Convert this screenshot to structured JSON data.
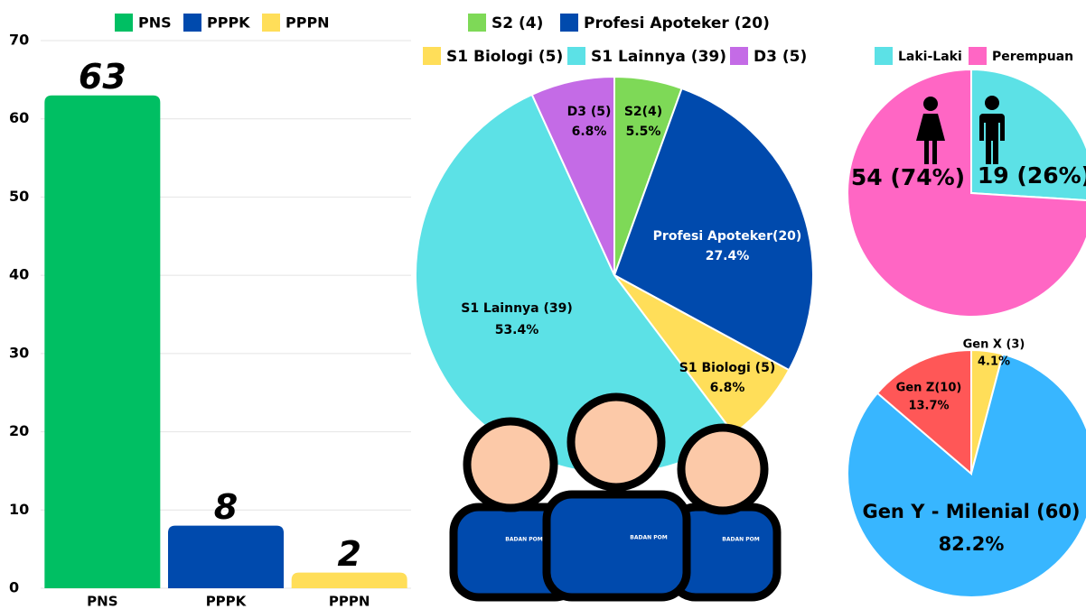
{
  "chart_data": [
    {
      "type": "bar",
      "categories": [
        "PNS",
        "PPPK",
        "PPPN"
      ],
      "values": [
        63,
        8,
        2
      ],
      "colors": [
        "#00bf63",
        "#004aad",
        "#ffde59"
      ],
      "ylim": [
        0,
        70
      ],
      "yticks": [
        0,
        10,
        20,
        30,
        40,
        50,
        60,
        70
      ],
      "grid": true,
      "legend": true
    },
    {
      "type": "pie",
      "categories": [
        "S2 (4)",
        "Profesi Apoteker (20)",
        "S1 Biologi (5)",
        "S1 Lainnya (39)",
        "D3 (5)"
      ],
      "values": [
        5.5,
        27.4,
        6.8,
        53.4,
        6.8
      ],
      "value_labels": [
        "5.5%",
        "27.4%",
        "6.8%",
        "53.4%",
        "6.8%"
      ],
      "slice_labels": [
        "S2(4)",
        "Profesi Apoteker(20)",
        "S1 Biologi (5)",
        "S1 Lainnya (39)",
        "D3 (5)"
      ],
      "colors": [
        "#7ed957",
        "#004aad",
        "#ffde59",
        "#5ce1e6",
        "#c46be6"
      ],
      "legend": true
    },
    {
      "type": "pie",
      "categories": [
        "Laki-Laki",
        "Perempuan"
      ],
      "values": [
        26,
        74
      ],
      "slice_labels": [
        "19 (26%)",
        "54 (74%)"
      ],
      "colors": [
        "#5ce1e6",
        "#ff66c4"
      ],
      "legend": true
    },
    {
      "type": "pie",
      "categories": [
        "Gen X (3)",
        "Gen Y - Milenial (60)",
        "Gen Z(10)"
      ],
      "values": [
        4.1,
        82.2,
        13.7
      ],
      "value_labels": [
        "4.1%",
        "82.2%",
        "13.7%"
      ],
      "colors": [
        "#ffde59",
        "#38b6ff",
        "#ff5757"
      ],
      "legend": false
    }
  ],
  "decor": {
    "logo": "BADAN POM"
  }
}
